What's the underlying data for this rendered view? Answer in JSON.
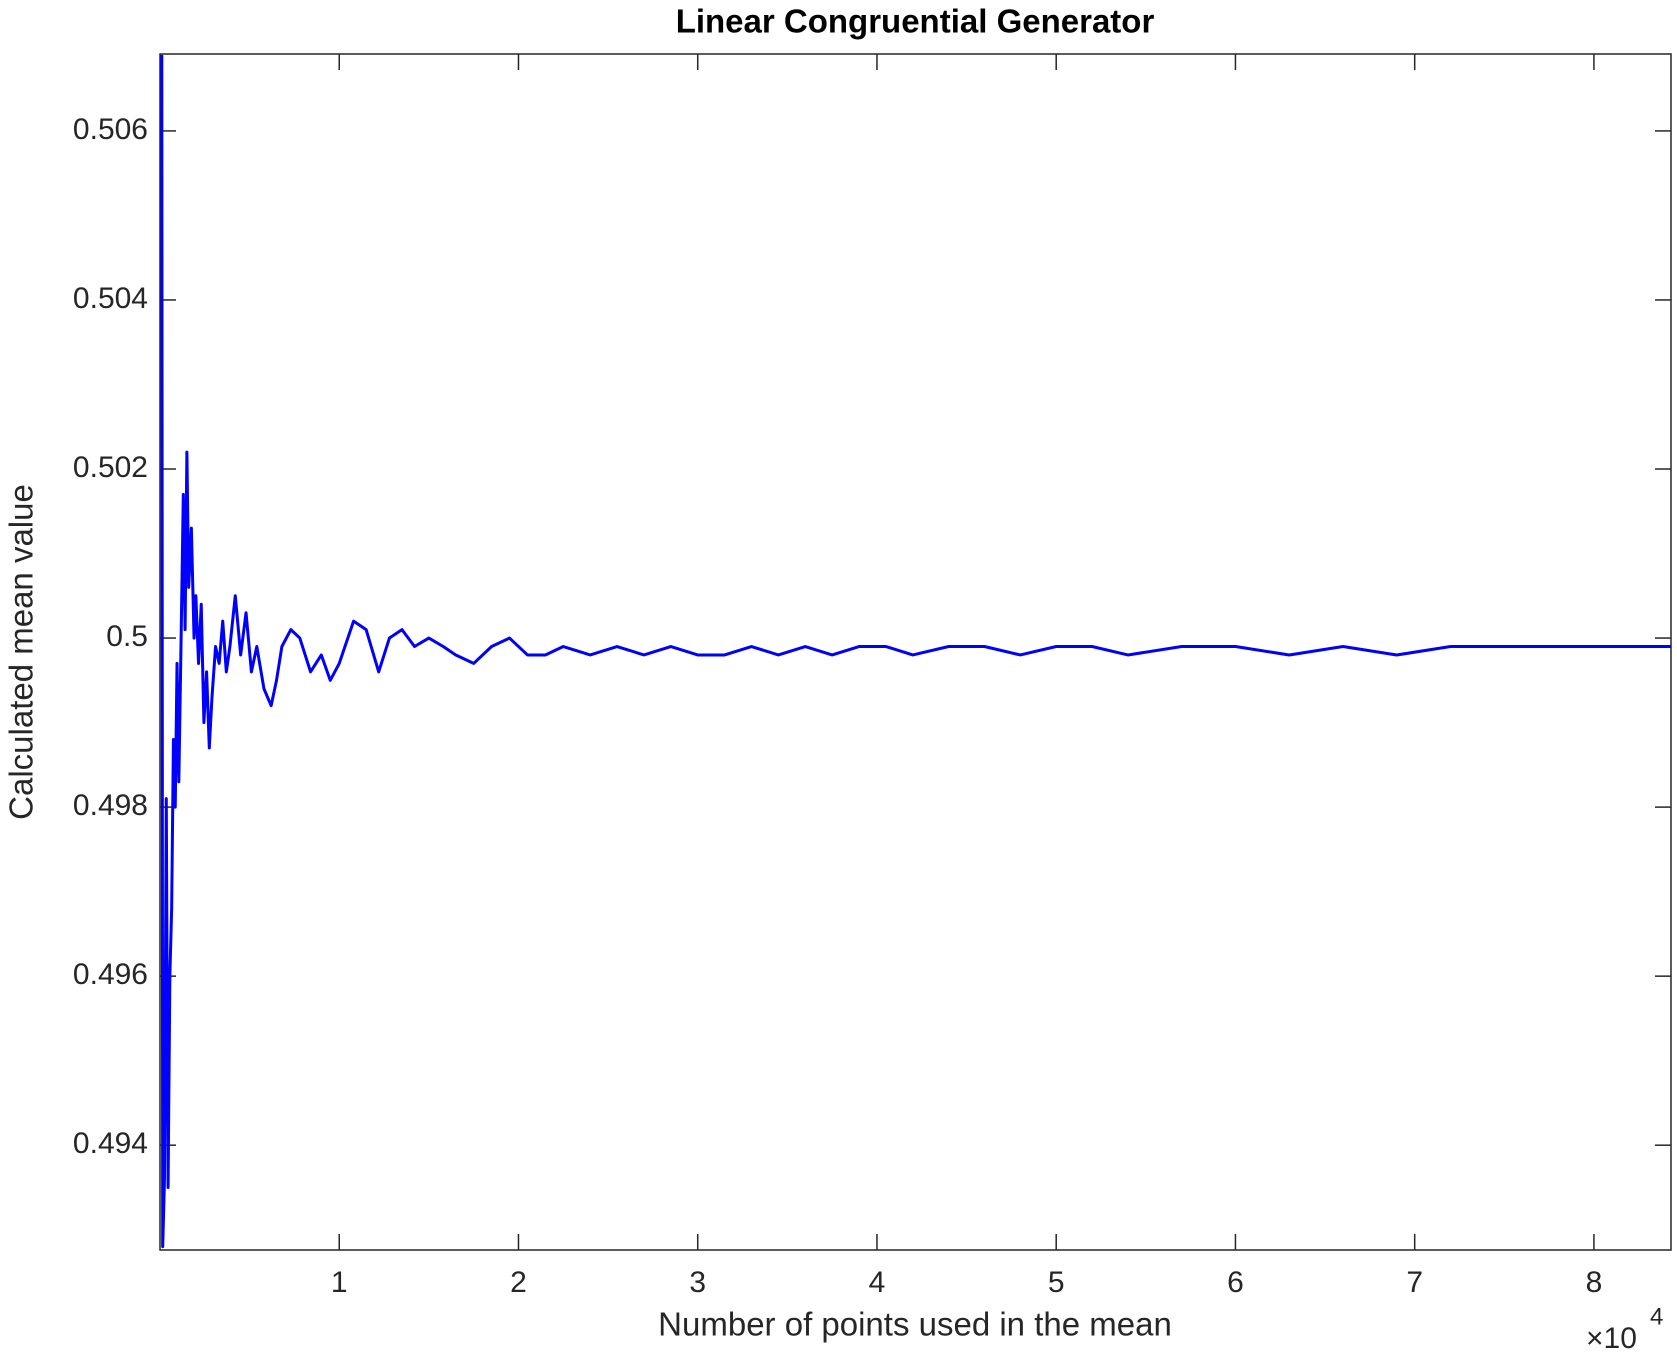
{
  "chart_data": {
    "type": "line",
    "title": "Linear Congruential Generator",
    "x_label": "Number of points used in the mean",
    "y_label": "Calculated mean value",
    "x_multiplier": "×10",
    "x_multiplier_exponent": "4",
    "color": "#0000ff",
    "x": [
      100,
      150,
      250,
      350,
      450,
      550,
      650,
      750,
      850,
      950,
      1050,
      1200,
      1300,
      1400,
      1500,
      1600,
      1750,
      1900,
      2000,
      2150,
      2300,
      2450,
      2600,
      2750,
      2900,
      3100,
      3300,
      3500,
      3700,
      3900,
      4200,
      4500,
      4800,
      5100,
      5400,
      5800,
      6200,
      6500,
      6800,
      7300,
      7800,
      8400,
      9000,
      9500,
      10000,
      10800,
      11500,
      12200,
      12800,
      13500,
      14200,
      15000,
      15800,
      16500,
      17500,
      18500,
      19500,
      20500,
      21500,
      22500,
      24000,
      25500,
      27000,
      28500,
      30000,
      31500,
      33000,
      34500,
      36000,
      37500,
      39000,
      40500,
      42000,
      44000,
      46000,
      48000,
      50000,
      52000,
      54000,
      57000,
      60000,
      63000,
      66000,
      69000,
      72000,
      75000,
      78000,
      81000,
      84300
    ],
    "values": [
      0.5069,
      0.4928,
      0.4936,
      0.4981,
      0.4935,
      0.496,
      0.4968,
      0.4988,
      0.498,
      0.4997,
      0.4983,
      0.5003,
      0.5017,
      0.5001,
      0.5022,
      0.5006,
      0.5013,
      0.5,
      0.5005,
      0.4997,
      0.5004,
      0.499,
      0.4996,
      0.4987,
      0.4993,
      0.4999,
      0.4997,
      0.5002,
      0.4996,
      0.4999,
      0.5005,
      0.4998,
      0.5003,
      0.4996,
      0.4999,
      0.4994,
      0.4992,
      0.4995,
      0.4999,
      0.5001,
      0.5,
      0.4996,
      0.4998,
      0.4995,
      0.4997,
      0.5002,
      0.5001,
      0.4996,
      0.5,
      0.5001,
      0.4999,
      0.5,
      0.4999,
      0.4998,
      0.4997,
      0.4999,
      0.5,
      0.4998,
      0.4998,
      0.4999,
      0.4998,
      0.4999,
      0.4998,
      0.4999,
      0.4998,
      0.4998,
      0.4999,
      0.4998,
      0.4999,
      0.4998,
      0.4999,
      0.4999,
      0.4998,
      0.4999,
      0.4999,
      0.4998,
      0.4999,
      0.4999,
      0.4998,
      0.4999,
      0.4999,
      0.4998,
      0.4999,
      0.4998,
      0.4999,
      0.4999,
      0.4999,
      0.4999,
      0.4999
    ],
    "xlim": [
      0,
      84300
    ],
    "xticks": [
      {
        "value": 10000,
        "label": "1"
      },
      {
        "value": 20000,
        "label": "2"
      },
      {
        "value": 30000,
        "label": "3"
      },
      {
        "value": 40000,
        "label": "4"
      },
      {
        "value": 50000,
        "label": "5"
      },
      {
        "value": 60000,
        "label": "6"
      },
      {
        "value": 70000,
        "label": "7"
      },
      {
        "value": 80000,
        "label": "8"
      }
    ],
    "ylim": [
      0.49276,
      0.50691
    ],
    "yticks": [
      0.494,
      0.496,
      0.498,
      0.5,
      0.502,
      0.504,
      0.506
    ],
    "grid": false
  }
}
